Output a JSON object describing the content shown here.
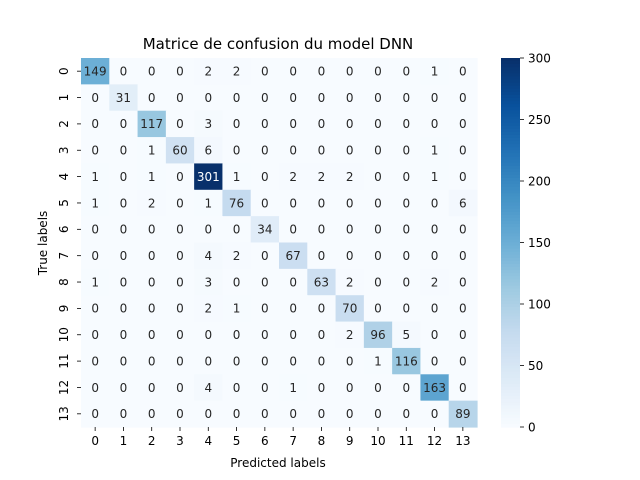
{
  "chart_data": {
    "type": "heatmap",
    "title": "Matrice de confusion du model DNN",
    "xlabel": "Predicted labels",
    "ylabel": "True labels",
    "x_ticks": [
      "0",
      "1",
      "2",
      "3",
      "4",
      "5",
      "6",
      "7",
      "8",
      "9",
      "10",
      "11",
      "12",
      "13"
    ],
    "y_ticks": [
      "0",
      "1",
      "2",
      "3",
      "4",
      "5",
      "6",
      "7",
      "8",
      "9",
      "10",
      "11",
      "12",
      "13"
    ],
    "matrix": [
      [
        149,
        0,
        0,
        0,
        2,
        2,
        0,
        0,
        0,
        0,
        0,
        0,
        1,
        0
      ],
      [
        0,
        31,
        0,
        0,
        0,
        0,
        0,
        0,
        0,
        0,
        0,
        0,
        0,
        0
      ],
      [
        0,
        0,
        117,
        0,
        3,
        0,
        0,
        0,
        0,
        0,
        0,
        0,
        0,
        0
      ],
      [
        0,
        0,
        1,
        60,
        6,
        0,
        0,
        0,
        0,
        0,
        0,
        0,
        1,
        0
      ],
      [
        1,
        0,
        1,
        0,
        301,
        1,
        0,
        2,
        2,
        2,
        0,
        0,
        1,
        0
      ],
      [
        1,
        0,
        2,
        0,
        1,
        76,
        0,
        0,
        0,
        0,
        0,
        0,
        0,
        6
      ],
      [
        0,
        0,
        0,
        0,
        0,
        0,
        34,
        0,
        0,
        0,
        0,
        0,
        0,
        0
      ],
      [
        0,
        0,
        0,
        0,
        4,
        2,
        0,
        67,
        0,
        0,
        0,
        0,
        0,
        0
      ],
      [
        1,
        0,
        0,
        0,
        3,
        0,
        0,
        0,
        63,
        2,
        0,
        0,
        2,
        0
      ],
      [
        0,
        0,
        0,
        0,
        2,
        1,
        0,
        0,
        0,
        70,
        0,
        0,
        0,
        0
      ],
      [
        0,
        0,
        0,
        0,
        0,
        0,
        0,
        0,
        0,
        2,
        96,
        5,
        0,
        0
      ],
      [
        0,
        0,
        0,
        0,
        0,
        0,
        0,
        0,
        0,
        0,
        1,
        116,
        0,
        0
      ],
      [
        0,
        0,
        0,
        0,
        4,
        0,
        0,
        1,
        0,
        0,
        0,
        0,
        163,
        0
      ],
      [
        0,
        0,
        0,
        0,
        0,
        0,
        0,
        0,
        0,
        0,
        0,
        0,
        0,
        89
      ]
    ],
    "colorbar": {
      "colormap": "Blues",
      "min": 0,
      "max": 300,
      "ticks": [
        "0",
        "50",
        "100",
        "150",
        "200",
        "250",
        "300"
      ]
    }
  }
}
